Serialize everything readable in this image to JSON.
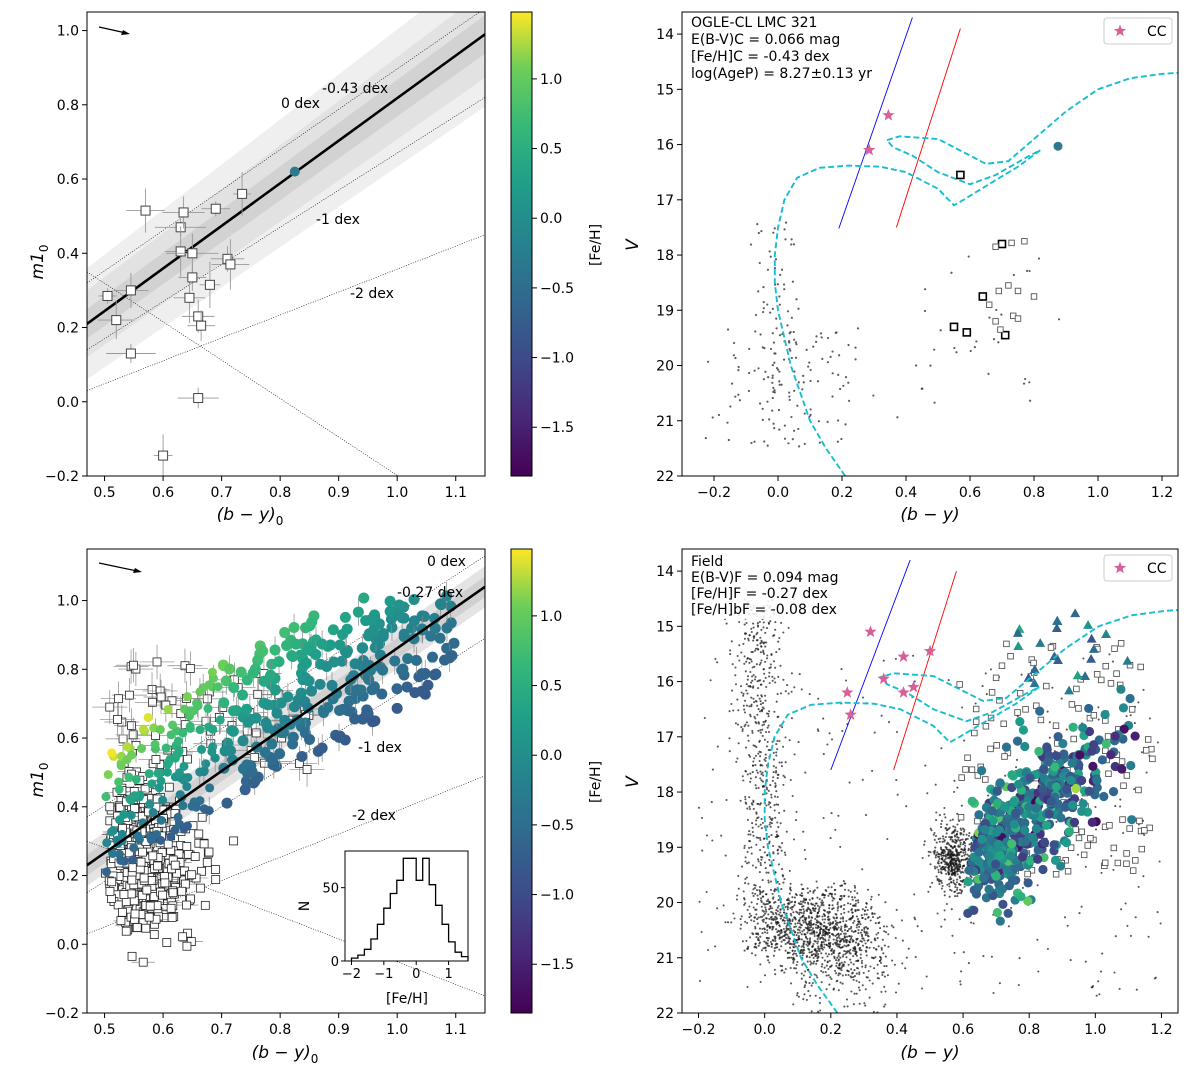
{
  "panels": {
    "tl": {
      "xlabel": "(b − y)",
      "xlabel_sub": "0",
      "ylabel": "m1",
      "ylabel_sub": "0",
      "xticks": [
        "0.5",
        "0.6",
        "0.7",
        "0.8",
        "0.9",
        "1.0",
        "1.1"
      ],
      "yticks": [
        "−0.2",
        "0.0",
        "0.2",
        "0.4",
        "0.6",
        "0.8",
        "1.0"
      ],
      "annotations": [
        "-0.43 dex",
        "0 dex",
        "-1 dex",
        "-2 dex"
      ]
    },
    "tr": {
      "xlabel": "(b − y)",
      "ylabel": "V",
      "xticks": [
        "−0.2",
        "0.0",
        "0.2",
        "0.4",
        "0.6",
        "0.8",
        "1.0",
        "1.2"
      ],
      "yticks": [
        "14",
        "15",
        "16",
        "17",
        "18",
        "19",
        "20",
        "21",
        "22"
      ],
      "legend": "CC",
      "info": [
        "OGLE-CL LMC 321",
        "E(B-V)C = 0.066 mag",
        "[Fe/H]C = -0.43 dex",
        "log(AgeP) = 8.27±0.13 yr"
      ]
    },
    "bl": {
      "xlabel": "(b − y)",
      "xlabel_sub": "0",
      "ylabel": "m1",
      "ylabel_sub": "0",
      "xticks": [
        "0.5",
        "0.6",
        "0.7",
        "0.8",
        "0.9",
        "1.0",
        "1.1"
      ],
      "yticks": [
        "−0.2",
        "0.0",
        "0.2",
        "0.4",
        "0.6",
        "0.8",
        "1.0"
      ],
      "annotations": [
        "0 dex",
        "-0.27 dex",
        "-1 dex",
        "-2 dex"
      ],
      "inset": {
        "xlabel": "[Fe/H]",
        "ylabel": "N",
        "xticks": [
          "−2",
          "−1",
          "0",
          "1"
        ],
        "yticks": [
          "0",
          "50"
        ]
      }
    },
    "br": {
      "xlabel": "(b − y)",
      "ylabel": "V",
      "xticks": [
        "−0.2",
        "0.0",
        "0.2",
        "0.4",
        "0.6",
        "0.8",
        "1.0",
        "1.2"
      ],
      "yticks": [
        "14",
        "15",
        "16",
        "17",
        "18",
        "19",
        "20",
        "21",
        "22"
      ],
      "legend": "CC",
      "info": [
        "Field",
        "E(B-V)F = 0.094 mag",
        "[Fe/H]F = -0.27 dex",
        "[Fe/H]bF = -0.08 dex"
      ]
    }
  },
  "colorbar": {
    "label": "[Fe/H]",
    "ticks": [
      "1.0",
      "0.5",
      "0.0",
      "−0.5",
      "−1.0",
      "−1.5"
    ]
  },
  "colors": {
    "fit_line": "#000000",
    "isochrone": "#17becf",
    "blue_line": "#0000ff",
    "red_line": "#ff0000",
    "cc_star": "#d6609a",
    "cluster_marker": "#2c7a8c"
  },
  "chart_data": [
    {
      "type": "scatter",
      "panel": "tl",
      "xlim": [
        0.47,
        1.15
      ],
      "ylim": [
        -0.2,
        1.05
      ],
      "fit_line": [
        [
          0.47,
          0.21
        ],
        [
          1.15,
          0.99
        ]
      ],
      "cluster_point": {
        "x": 0.825,
        "y": 0.62
      },
      "iso_metallicity_lines": [
        {
          "label": "0 dex",
          "points": [
            [
              0.47,
              0.32
            ],
            [
              1.15,
              1.06
            ]
          ]
        },
        {
          "label": "-1 dex",
          "points": [
            [
              0.47,
              0.14
            ],
            [
              1.15,
              0.82
            ]
          ]
        },
        {
          "label": "-2 dex",
          "points": [
            [
              0.47,
              0.03
            ],
            [
              1.15,
              0.45
            ]
          ]
        }
      ],
      "stars": [
        {
          "x": 0.505,
          "y": 0.285
        },
        {
          "x": 0.52,
          "y": 0.22
        },
        {
          "x": 0.545,
          "y": 0.13
        },
        {
          "x": 0.545,
          "y": 0.3
        },
        {
          "x": 0.57,
          "y": 0.515
        },
        {
          "x": 0.6,
          "y": -0.145
        },
        {
          "x": 0.63,
          "y": 0.47
        },
        {
          "x": 0.635,
          "y": 0.51
        },
        {
          "x": 0.63,
          "y": 0.405
        },
        {
          "x": 0.645,
          "y": 0.28
        },
        {
          "x": 0.65,
          "y": 0.4
        },
        {
          "x": 0.66,
          "y": 0.23
        },
        {
          "x": 0.665,
          "y": 0.205
        },
        {
          "x": 0.66,
          "y": 0.01
        },
        {
          "x": 0.68,
          "y": 0.315
        },
        {
          "x": 0.69,
          "y": 0.52
        },
        {
          "x": 0.71,
          "y": 0.385
        },
        {
          "x": 0.715,
          "y": 0.37
        },
        {
          "x": 0.735,
          "y": 0.56
        },
        {
          "x": 0.65,
          "y": 0.335
        }
      ]
    },
    {
      "type": "scatter",
      "panel": "tr",
      "xlim": [
        -0.3,
        1.25
      ],
      "ylim": [
        22,
        13.6
      ],
      "cc_stars": [
        {
          "x": 0.285,
          "y": 16.1
        },
        {
          "x": 0.345,
          "y": 15.47
        }
      ],
      "cluster_point": {
        "x": 0.875,
        "y": 16.03
      },
      "boxed_stars": [
        {
          "x": 0.57,
          "y": 16.55
        },
        {
          "x": 0.55,
          "y": 19.3
        },
        {
          "x": 0.59,
          "y": 19.4
        },
        {
          "x": 0.64,
          "y": 18.75
        },
        {
          "x": 0.71,
          "y": 19.45
        },
        {
          "x": 0.7,
          "y": 17.8
        },
        {
          "x": 0.68,
          "y": 17.85
        },
        {
          "x": 0.73,
          "y": 17.78
        },
        {
          "x": 0.77,
          "y": 17.75
        },
        {
          "x": 0.72,
          "y": 18.55
        },
        {
          "x": 0.69,
          "y": 18.65
        },
        {
          "x": 0.66,
          "y": 18.9
        },
        {
          "x": 0.75,
          "y": 18.65
        },
        {
          "x": 0.695,
          "y": 19.35
        },
        {
          "x": 0.68,
          "y": 19.2
        },
        {
          "x": 0.735,
          "y": 19.1
        },
        {
          "x": 0.8,
          "y": 18.75
        },
        {
          "x": 0.75,
          "y": 19.15
        }
      ]
    },
    {
      "type": "scatter",
      "panel": "bl",
      "xlim": [
        0.47,
        1.15
      ],
      "ylim": [
        -0.2,
        1.15
      ],
      "fit_line": [
        [
          0.47,
          0.23
        ],
        [
          1.15,
          1.04
        ]
      ],
      "iso_metallicity_lines": [
        {
          "label": "0 dex",
          "points": [
            [
              0.47,
              0.37
            ],
            [
              1.15,
              1.13
            ]
          ]
        },
        {
          "label": "-1 dex",
          "points": [
            [
              0.47,
              0.15
            ],
            [
              1.15,
              0.89
            ]
          ]
        },
        {
          "label": "-2 dex",
          "points": [
            [
              0.47,
              0.03
            ],
            [
              1.15,
              0.49
            ]
          ]
        }
      ],
      "histogram": {
        "bin_edges": [
          -2.0,
          -1.8,
          -1.6,
          -1.4,
          -1.2,
          -1.0,
          -0.8,
          -0.6,
          -0.4,
          -0.2,
          0.0,
          0.2,
          0.4,
          0.6,
          0.8,
          1.0,
          1.2,
          1.4,
          1.6
        ],
        "counts": [
          2,
          4,
          8,
          15,
          25,
          36,
          46,
          55,
          70,
          70,
          55,
          70,
          52,
          38,
          25,
          13,
          6,
          3
        ]
      }
    },
    {
      "type": "scatter",
      "panel": "br",
      "xlim": [
        -0.25,
        1.25
      ],
      "ylim": [
        22,
        13.6
      ],
      "cc_stars": [
        {
          "x": 0.25,
          "y": 16.2
        },
        {
          "x": 0.26,
          "y": 16.6
        },
        {
          "x": 0.32,
          "y": 15.1
        },
        {
          "x": 0.36,
          "y": 15.95
        },
        {
          "x": 0.42,
          "y": 15.55
        },
        {
          "x": 0.42,
          "y": 16.2
        },
        {
          "x": 0.45,
          "y": 16.1
        },
        {
          "x": 0.5,
          "y": 15.45
        }
      ]
    }
  ]
}
